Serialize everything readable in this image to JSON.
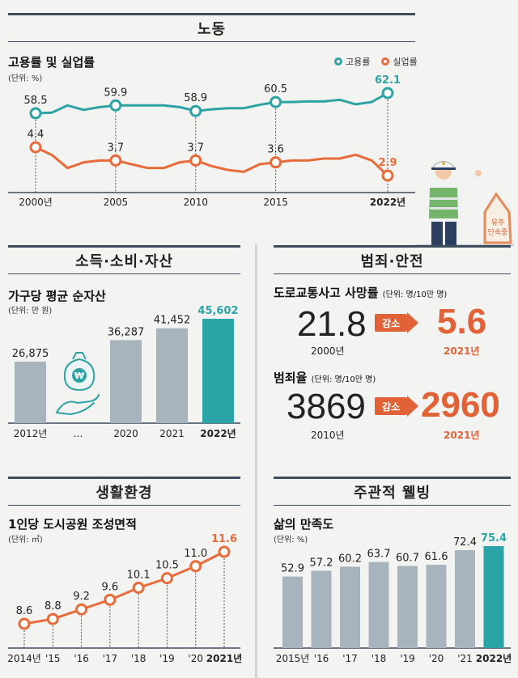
{
  "colors": {
    "teal": "#2ea3a4",
    "orange": "#e86c3a",
    "gray_bar": "#a8b4bd",
    "highlight_bar": "#2aa4a6",
    "navy": "#3d4d5f"
  },
  "labor": {
    "header": "노동",
    "title": "고용률 및 실업률",
    "unit": "(단위: %)",
    "legend": [
      "고용률",
      "실업률"
    ]
  },
  "income": {
    "header": "소득·소비·자산",
    "title": "가구당 평균 순자산",
    "unit": "(단위: 만 원)"
  },
  "crime": {
    "header": "범죄·안전",
    "traffic": {
      "title": "도로교통사고 사망률",
      "unit": "(단위: 명/10만 명)",
      "before_value": "21.8",
      "before_year": "2000년",
      "badge": "감소",
      "after_value": "5.6",
      "after_year": "2021년"
    },
    "crime_rate": {
      "title": "범죄율",
      "unit": "(단위: 명/10만 명)",
      "before_value": "3869",
      "before_year": "2010년",
      "badge": "감소",
      "after_value": "2960",
      "after_year": "2021년"
    }
  },
  "env": {
    "header": "생활환경",
    "title": "1인당 도시공원 조성면적",
    "unit": "(단위: ㎡)"
  },
  "wellbeing": {
    "header": "주관적 웰빙",
    "title": "삶의 만족도",
    "unit": "(단위: %)"
  },
  "illustration": {
    "sign_text": "유주 단속중",
    "icon": "traffic-police-illustration"
  },
  "chart_data": [
    {
      "type": "line",
      "title": "고용률 및 실업률",
      "x_ticks": [
        "2000년",
        "2005",
        "2010",
        "2015",
        "2022년"
      ],
      "series": [
        {
          "name": "고용률",
          "x": [
            2000,
            2001,
            2002,
            2003,
            2004,
            2005,
            2006,
            2007,
            2008,
            2009,
            2010,
            2011,
            2012,
            2013,
            2014,
            2015,
            2016,
            2017,
            2018,
            2019,
            2020,
            2021,
            2022
          ],
          "values": [
            58.5,
            58.6,
            59.9,
            59.1,
            59.6,
            59.9,
            59.9,
            59.9,
            59.9,
            59.6,
            58.9,
            59.2,
            59.4,
            59.4,
            60.0,
            60.5,
            60.5,
            60.6,
            60.6,
            60.9,
            60.1,
            60.5,
            62.1
          ],
          "labels": {
            "2000": "58.5",
            "2005": "59.9",
            "2010": "58.9",
            "2015": "60.5",
            "2022": "62.1"
          }
        },
        {
          "name": "실업률",
          "x": [
            2000,
            2001,
            2002,
            2003,
            2004,
            2005,
            2006,
            2007,
            2008,
            2009,
            2010,
            2011,
            2012,
            2013,
            2014,
            2015,
            2016,
            2017,
            2018,
            2019,
            2020,
            2021,
            2022
          ],
          "values": [
            4.4,
            4.0,
            3.3,
            3.6,
            3.7,
            3.7,
            3.5,
            3.3,
            3.3,
            3.6,
            3.7,
            3.4,
            3.2,
            3.1,
            3.5,
            3.6,
            3.7,
            3.7,
            3.8,
            3.8,
            4.0,
            3.7,
            2.9
          ],
          "labels": {
            "2000": "4.4",
            "2005": "3.7",
            "2010": "3.7",
            "2015": "3.6",
            "2022": "2.9"
          }
        }
      ]
    },
    {
      "type": "bar",
      "title": "가구당 평균 순자산",
      "categories": [
        "2012년",
        "…",
        "2020",
        "2021",
        "2022년"
      ],
      "values": [
        26875,
        null,
        36287,
        41452,
        45602
      ],
      "value_labels": [
        "26,875",
        "",
        "36,287",
        "41,452",
        "45,602"
      ]
    },
    {
      "type": "line",
      "title": "1인당 도시공원 조성면적",
      "categories": [
        "2014년",
        "'15",
        "'16",
        "'17",
        "'18",
        "'19",
        "'20",
        "2021년"
      ],
      "values": [
        8.6,
        8.8,
        9.2,
        9.6,
        10.1,
        10.5,
        11.0,
        11.6
      ],
      "value_labels": [
        "8.6",
        "8.8",
        "9.2",
        "9.6",
        "10.1",
        "10.5",
        "11.0",
        "11.6"
      ]
    },
    {
      "type": "bar",
      "title": "삶의 만족도",
      "categories": [
        "2015년",
        "'16",
        "'17",
        "'18",
        "'19",
        "'20",
        "'21",
        "2022년"
      ],
      "values": [
        52.9,
        57.2,
        60.2,
        63.7,
        60.7,
        61.6,
        72.4,
        75.4
      ],
      "value_labels": [
        "52.9",
        "57.2",
        "60.2",
        "63.7",
        "60.7",
        "61.6",
        "72.4",
        "75.4"
      ]
    }
  ]
}
